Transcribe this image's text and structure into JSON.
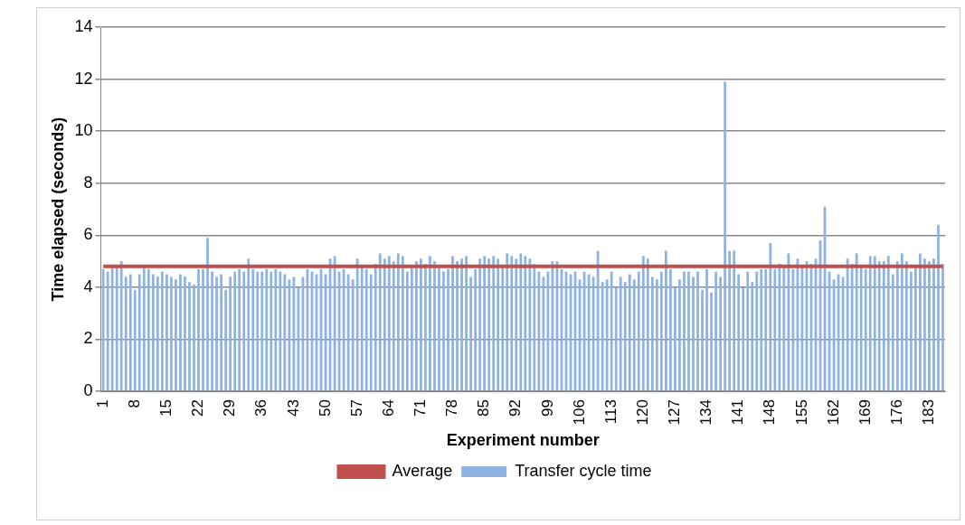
{
  "chart_data": {
    "type": "bar",
    "xlabel": "Experiment number",
    "ylabel": "Time elapsed (seconds)",
    "categories": [
      "1",
      null,
      null,
      null,
      null,
      null,
      null,
      "8",
      null,
      null,
      null,
      null,
      null,
      null,
      "15",
      null,
      null,
      null,
      null,
      null,
      null,
      "22",
      null,
      null,
      null,
      null,
      null,
      null,
      "29",
      null,
      null,
      null,
      null,
      null,
      null,
      "36",
      null,
      null,
      null,
      null,
      null,
      null,
      "43",
      null,
      null,
      null,
      null,
      null,
      null,
      "50",
      null,
      null,
      null,
      null,
      null,
      null,
      "57",
      null,
      null,
      null,
      null,
      null,
      null,
      "64",
      null,
      null,
      null,
      null,
      null,
      null,
      "71",
      null,
      null,
      null,
      null,
      null,
      null,
      "78",
      null,
      null,
      null,
      null,
      null,
      null,
      "85",
      null,
      null,
      null,
      null,
      null,
      null,
      "92",
      null,
      null,
      null,
      null,
      null,
      null,
      "99",
      null,
      null,
      null,
      null,
      null,
      null,
      "106",
      null,
      null,
      null,
      null,
      null,
      null,
      "113",
      null,
      null,
      null,
      null,
      null,
      null,
      "120",
      null,
      null,
      null,
      null,
      null,
      null,
      "127",
      null,
      null,
      null,
      null,
      null,
      null,
      "134",
      null,
      null,
      null,
      null,
      null,
      null,
      "141",
      null,
      null,
      null,
      null,
      null,
      null,
      "148",
      null,
      null,
      null,
      null,
      null,
      null,
      "155",
      null,
      null,
      null,
      null,
      null,
      null,
      "162",
      null,
      null,
      null,
      null,
      null,
      null,
      "169",
      null,
      null,
      null,
      null,
      null,
      null,
      "176",
      null,
      null,
      null,
      null,
      null,
      null,
      "183",
      null,
      null,
      null
    ],
    "series": [
      {
        "name": "Transfer cycle time",
        "color": "#8db3e2",
        "values": [
          4.7,
          4.6,
          4.8,
          4.8,
          5.0,
          4.4,
          4.5,
          3.9,
          4.5,
          4.8,
          4.7,
          4.5,
          4.4,
          4.6,
          4.5,
          4.4,
          4.3,
          4.5,
          4.4,
          4.2,
          4.1,
          4.7,
          4.7,
          5.9,
          4.6,
          4.4,
          4.5,
          3.9,
          4.4,
          4.6,
          4.7,
          4.6,
          5.1,
          4.7,
          4.6,
          4.6,
          4.7,
          4.6,
          4.7,
          4.6,
          4.5,
          4.3,
          4.4,
          4.0,
          4.4,
          4.7,
          4.6,
          4.5,
          4.7,
          4.5,
          5.1,
          5.2,
          4.6,
          4.7,
          4.5,
          4.3,
          5.1,
          4.8,
          4.7,
          4.5,
          4.9,
          5.3,
          5.1,
          5.2,
          5.0,
          5.3,
          5.2,
          4.6,
          4.8,
          5.0,
          5.1,
          4.9,
          5.2,
          5.0,
          4.8,
          4.6,
          4.7,
          5.2,
          5.0,
          5.1,
          5.2,
          4.4,
          4.7,
          5.1,
          5.2,
          5.1,
          5.2,
          5.1,
          4.8,
          5.3,
          5.2,
          5.1,
          5.3,
          5.2,
          5.1,
          4.9,
          4.6,
          4.4,
          4.6,
          5.0,
          5.0,
          4.7,
          4.6,
          4.5,
          4.6,
          4.3,
          4.6,
          4.5,
          4.4,
          5.4,
          4.2,
          4.3,
          4.6,
          4.0,
          4.4,
          4.2,
          4.5,
          4.3,
          4.6,
          5.2,
          5.1,
          4.4,
          4.3,
          4.6,
          5.4,
          4.7,
          4.0,
          4.3,
          4.6,
          4.6,
          4.4,
          4.6,
          3.9,
          4.7,
          3.8,
          4.6,
          4.4,
          11.9,
          5.4,
          5.4,
          4.5,
          4.0,
          4.6,
          4.2,
          4.6,
          4.7,
          4.7,
          5.7,
          4.7,
          4.9,
          4.8,
          5.3,
          4.7,
          5.1,
          4.8,
          5.0,
          4.9,
          5.1,
          5.8,
          7.1,
          4.6,
          4.3,
          4.5,
          4.4,
          5.1,
          4.9,
          5.3,
          4.8,
          4.7,
          5.2,
          5.2,
          5.0,
          5.0,
          5.2,
          4.5,
          5.0,
          5.3,
          5.0,
          4.6,
          4.8,
          5.3,
          5.1,
          5.0,
          5.1,
          6.4,
          4.9
        ]
      },
      {
        "name": "Average",
        "type": "line",
        "color": "#c0504d",
        "values": [
          4.8,
          4.8,
          4.8,
          4.8,
          4.8,
          4.8,
          4.8,
          4.8,
          4.8,
          4.8,
          4.8,
          4.8,
          4.8,
          4.8,
          4.8,
          4.8,
          4.8,
          4.8,
          4.8,
          4.8,
          4.8,
          4.8,
          4.8,
          4.8,
          4.8,
          4.8,
          4.8,
          4.8,
          4.8,
          4.8,
          4.8,
          4.8,
          4.8,
          4.8,
          4.8,
          4.8,
          4.8,
          4.8,
          4.8,
          4.8,
          4.8,
          4.8,
          4.8,
          4.8,
          4.8,
          4.8,
          4.8,
          4.8,
          4.8,
          4.8,
          4.8,
          4.8,
          4.8,
          4.8,
          4.8,
          4.8,
          4.8,
          4.8,
          4.8,
          4.8,
          4.8,
          4.8,
          4.8,
          4.8,
          4.8,
          4.8,
          4.8,
          4.8,
          4.8,
          4.8,
          4.8,
          4.8,
          4.8,
          4.8,
          4.8,
          4.8,
          4.8,
          4.8,
          4.8,
          4.8,
          4.8,
          4.8,
          4.8,
          4.8,
          4.8,
          4.8,
          4.8,
          4.8,
          4.8,
          4.8,
          4.8,
          4.8,
          4.8,
          4.8,
          4.8,
          4.8,
          4.8,
          4.8,
          4.8,
          4.8,
          4.8,
          4.8,
          4.8,
          4.8,
          4.8,
          4.8,
          4.8,
          4.8,
          4.8,
          4.8,
          4.8,
          4.8,
          4.8,
          4.8,
          4.8,
          4.8,
          4.8,
          4.8,
          4.8,
          4.8,
          4.8,
          4.8,
          4.8,
          4.8,
          4.8,
          4.8,
          4.8,
          4.8,
          4.8,
          4.8,
          4.8,
          4.8,
          4.8,
          4.8,
          4.8,
          4.8,
          4.8,
          4.8,
          4.8,
          4.8,
          4.8,
          4.8,
          4.8,
          4.8,
          4.8,
          4.8,
          4.8,
          4.8,
          4.8,
          4.8,
          4.8,
          4.8,
          4.8,
          4.8,
          4.8,
          4.8,
          4.8,
          4.8,
          4.8,
          4.8,
          4.8,
          4.8,
          4.8,
          4.8,
          4.8,
          4.8,
          4.8,
          4.8,
          4.8,
          4.8,
          4.8,
          4.8,
          4.8,
          4.8,
          4.8,
          4.8,
          4.8,
          4.8,
          4.8,
          4.8,
          4.8,
          4.8,
          4.8,
          4.8,
          4.8,
          4.8
        ]
      }
    ],
    "ylim": [
      0,
      14
    ],
    "yticks": [
      0,
      2,
      4,
      6,
      8,
      10,
      12,
      14
    ],
    "grid": "y",
    "legend": "bottom"
  }
}
